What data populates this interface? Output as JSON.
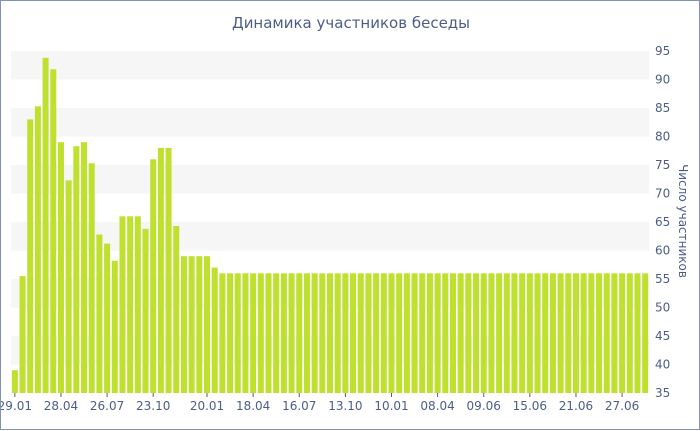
{
  "chart_data": {
    "type": "bar",
    "title": "Динамика участников беседы",
    "xlabel": "",
    "ylabel": "Число участников",
    "ylim": [
      35,
      95
    ],
    "y_ticks": [
      35,
      40,
      45,
      50,
      55,
      60,
      65,
      70,
      75,
      80,
      85,
      90,
      95
    ],
    "y_axis_side": "right",
    "x_tick_labels": [
      "29.01",
      "28.04",
      "26.07",
      "23.10",
      "20.01",
      "18.04",
      "16.07",
      "13.10",
      "10.01",
      "08.04",
      "09.06",
      "15.06",
      "21.06",
      "27.06"
    ],
    "x_tick_bar_index": [
      0,
      6,
      12,
      18,
      25,
      31,
      37,
      43,
      49,
      55,
      61,
      67,
      73,
      79
    ],
    "values": [
      39,
      55.5,
      83,
      85.3,
      93.8,
      91.8,
      79,
      72.3,
      78.3,
      79,
      75.3,
      62.8,
      61.2,
      58.2,
      66,
      66,
      66,
      63.8,
      76,
      78,
      78,
      64.3,
      59,
      59,
      59,
      59,
      57,
      56,
      56,
      56,
      56,
      56,
      56,
      56,
      56,
      56,
      56,
      56,
      56,
      56,
      56,
      56,
      56,
      56,
      56,
      56,
      56,
      56,
      56,
      56,
      56,
      56,
      56,
      56,
      56,
      56,
      56,
      56,
      56,
      56,
      56,
      56,
      56,
      56,
      56,
      56,
      56,
      56,
      56,
      56,
      56,
      56,
      56,
      56,
      56,
      56,
      56,
      56,
      56,
      56,
      56,
      56,
      56
    ],
    "bar_color": "#bfe02f",
    "band_color": "#f6f6f6",
    "text_color": "#4d5d8a",
    "grid": false
  }
}
